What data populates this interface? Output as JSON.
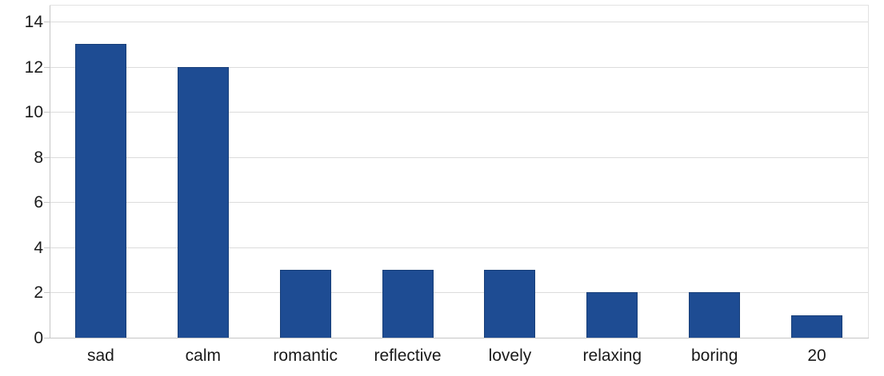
{
  "chart_data": {
    "type": "bar",
    "categories": [
      "sad",
      "calm",
      "romantic",
      "reflective",
      "lovely",
      "relaxing",
      "boring",
      "20"
    ],
    "values": [
      13,
      12,
      3,
      3,
      3,
      2,
      2,
      1
    ],
    "title": "",
    "xlabel": "",
    "ylabel": "",
    "ylim": [
      0,
      14
    ],
    "yticks": [
      0,
      2,
      4,
      6,
      8,
      10,
      12,
      14
    ],
    "grid": true,
    "legend_position": "none",
    "colors": {
      "bar_fill": "#1e4c93",
      "bar_border": "#173e78",
      "gridline": "#dcdcdc",
      "axis_line": "#c6c6c6",
      "plot_border": "#e2e2e2",
      "label_text": "#1a1a1a",
      "background": "#ffffff"
    }
  }
}
